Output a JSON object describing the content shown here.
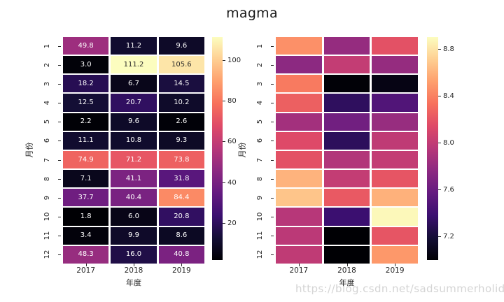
{
  "figure": {
    "title": "magma",
    "background": "#ffffff"
  },
  "watermark": {
    "text": "https://blog.csdn.net/sadsummerholiday",
    "color": "#d4d4d4"
  },
  "chart_data": [
    {
      "type": "heatmap",
      "panel": "left",
      "colormap": "magma",
      "xlabel": "年度",
      "ylabel": "月份",
      "x_categories": [
        "2017",
        "2018",
        "2019"
      ],
      "y_categories": [
        "1",
        "2",
        "3",
        "4",
        "5",
        "6",
        "7",
        "8",
        "9",
        "10",
        "11",
        "12"
      ],
      "annotated": true,
      "vmin": 1.8,
      "vmax": 111.2,
      "values": [
        [
          49.8,
          11.2,
          9.6
        ],
        [
          3.0,
          111.2,
          105.6
        ],
        [
          18.2,
          6.7,
          14.5
        ],
        [
          12.5,
          20.7,
          10.2
        ],
        [
          2.2,
          9.6,
          2.6
        ],
        [
          11.1,
          10.8,
          9.3
        ],
        [
          74.9,
          71.2,
          73.8
        ],
        [
          7.1,
          41.1,
          31.8
        ],
        [
          37.7,
          40.4,
          84.4
        ],
        [
          1.8,
          6.0,
          20.8
        ],
        [
          3.4,
          9.9,
          8.6
        ],
        [
          48.3,
          16.0,
          40.8
        ]
      ],
      "colorbar": {
        "ticks": [
          {
            "label": "100",
            "value": 100
          },
          {
            "label": "80",
            "value": 80
          },
          {
            "label": "60",
            "value": 60
          },
          {
            "label": "40",
            "value": 40
          },
          {
            "label": "20",
            "value": 20
          }
        ]
      }
    },
    {
      "type": "heatmap",
      "panel": "right",
      "colormap": "magma",
      "xlabel": "年度",
      "ylabel": "月份",
      "x_categories": [
        "2017",
        "2018",
        "2019"
      ],
      "y_categories": [
        "1",
        "2",
        "3",
        "4",
        "5",
        "6",
        "7",
        "8",
        "9",
        "10",
        "11",
        "12"
      ],
      "annotated": false,
      "vmin": 7.0,
      "vmax": 8.9,
      "values": [
        [
          8.46,
          7.8,
          8.18
        ],
        [
          7.76,
          8.01,
          7.8
        ],
        [
          8.37,
          7.01,
          7.06
        ],
        [
          8.25,
          7.32,
          7.48
        ],
        [
          7.86,
          7.63,
          7.81
        ],
        [
          8.14,
          7.31,
          7.99
        ],
        [
          8.18,
          7.93,
          8.01
        ],
        [
          8.6,
          8.01,
          8.2
        ],
        [
          8.67,
          8.22,
          8.59
        ],
        [
          7.95,
          7.38,
          8.88
        ],
        [
          7.97,
          7.0,
          8.2
        ],
        [
          7.99,
          7.0,
          8.49
        ]
      ],
      "colorbar": {
        "ticks": [
          {
            "label": "8.8",
            "value": 8.8
          },
          {
            "label": "8.4",
            "value": 8.4
          },
          {
            "label": "8.0",
            "value": 8.0
          },
          {
            "label": "7.6",
            "value": 7.6
          },
          {
            "label": "7.2",
            "value": 7.2
          }
        ]
      }
    }
  ]
}
